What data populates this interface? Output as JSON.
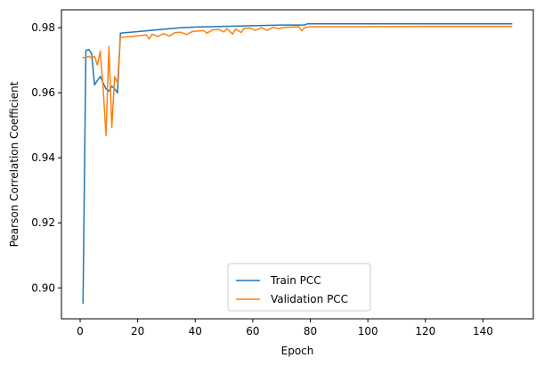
{
  "chart_data": {
    "type": "line",
    "xlabel": "Epoch",
    "ylabel": "Pearson Correlation Coefficient",
    "xlim": [
      -6.5,
      157.5
    ],
    "ylim": [
      0.8905,
      0.9855
    ],
    "x_ticks": [
      0,
      20,
      40,
      60,
      80,
      100,
      120,
      140
    ],
    "y_ticks": [
      0.9,
      0.92,
      0.94,
      0.96,
      0.98
    ],
    "y_tick_labels": [
      "0.90",
      "0.92",
      "0.94",
      "0.96",
      "0.98"
    ],
    "grid": false,
    "legend_position": "lower center",
    "series": [
      {
        "name": "Train PCC",
        "color": "#1f77b4",
        "points": [
          [
            1,
            0.8953
          ],
          [
            2,
            0.973
          ],
          [
            3,
            0.9733
          ],
          [
            4,
            0.972
          ],
          [
            5,
            0.9624
          ],
          [
            6,
            0.9638
          ],
          [
            7,
            0.965
          ],
          [
            8,
            0.963
          ],
          [
            9,
            0.9612
          ],
          [
            10,
            0.9605
          ],
          [
            11,
            0.962
          ],
          [
            12,
            0.9612
          ],
          [
            13,
            0.96
          ],
          [
            14,
            0.9783
          ],
          [
            16,
            0.9785
          ],
          [
            20,
            0.9788
          ],
          [
            25,
            0.9792
          ],
          [
            30,
            0.9796
          ],
          [
            35,
            0.98
          ],
          [
            40,
            0.9802
          ],
          [
            45,
            0.9803
          ],
          [
            50,
            0.9804
          ],
          [
            55,
            0.9805
          ],
          [
            60,
            0.9806
          ],
          [
            65,
            0.9807
          ],
          [
            70,
            0.9808
          ],
          [
            75,
            0.9808
          ],
          [
            78,
            0.9808
          ],
          [
            79,
            0.9812
          ],
          [
            85,
            0.9812
          ],
          [
            100,
            0.9812
          ],
          [
            120,
            0.9812
          ],
          [
            140,
            0.9812
          ],
          [
            150,
            0.9812
          ]
        ]
      },
      {
        "name": "Validation PCC",
        "color": "#ff7f0e",
        "points": [
          [
            1,
            0.9708
          ],
          [
            2,
            0.9708
          ],
          [
            3,
            0.9712
          ],
          [
            4,
            0.9706
          ],
          [
            5,
            0.9712
          ],
          [
            6,
            0.9685
          ],
          [
            7,
            0.9728
          ],
          [
            8,
            0.9612
          ],
          [
            9,
            0.9468
          ],
          [
            10,
            0.9742
          ],
          [
            11,
            0.9493
          ],
          [
            12,
            0.965
          ],
          [
            13,
            0.963
          ],
          [
            14,
            0.977
          ],
          [
            16,
            0.9772
          ],
          [
            20,
            0.9775
          ],
          [
            23,
            0.9778
          ],
          [
            24,
            0.9765
          ],
          [
            25,
            0.978
          ],
          [
            27,
            0.9773
          ],
          [
            29,
            0.9782
          ],
          [
            31,
            0.9774
          ],
          [
            33,
            0.9785
          ],
          [
            35,
            0.9786
          ],
          [
            37,
            0.9779
          ],
          [
            39,
            0.9788
          ],
          [
            41,
            0.979
          ],
          [
            43,
            0.9791
          ],
          [
            44,
            0.9783
          ],
          [
            46,
            0.9793
          ],
          [
            48,
            0.9795
          ],
          [
            50,
            0.9787
          ],
          [
            51,
            0.9797
          ],
          [
            53,
            0.978
          ],
          [
            54,
            0.9796
          ],
          [
            56,
            0.9785
          ],
          [
            57,
            0.9798
          ],
          [
            59,
            0.9799
          ],
          [
            61,
            0.9792
          ],
          [
            63,
            0.98
          ],
          [
            65,
            0.9792
          ],
          [
            67,
            0.9801
          ],
          [
            69,
            0.9797
          ],
          [
            71,
            0.9801
          ],
          [
            74,
            0.9802
          ],
          [
            76,
            0.9803
          ],
          [
            77,
            0.979
          ],
          [
            78,
            0.98
          ],
          [
            80,
            0.9803
          ],
          [
            90,
            0.9803
          ],
          [
            100,
            0.9803
          ],
          [
            120,
            0.9804
          ],
          [
            140,
            0.9804
          ],
          [
            150,
            0.9804
          ]
        ]
      }
    ]
  }
}
